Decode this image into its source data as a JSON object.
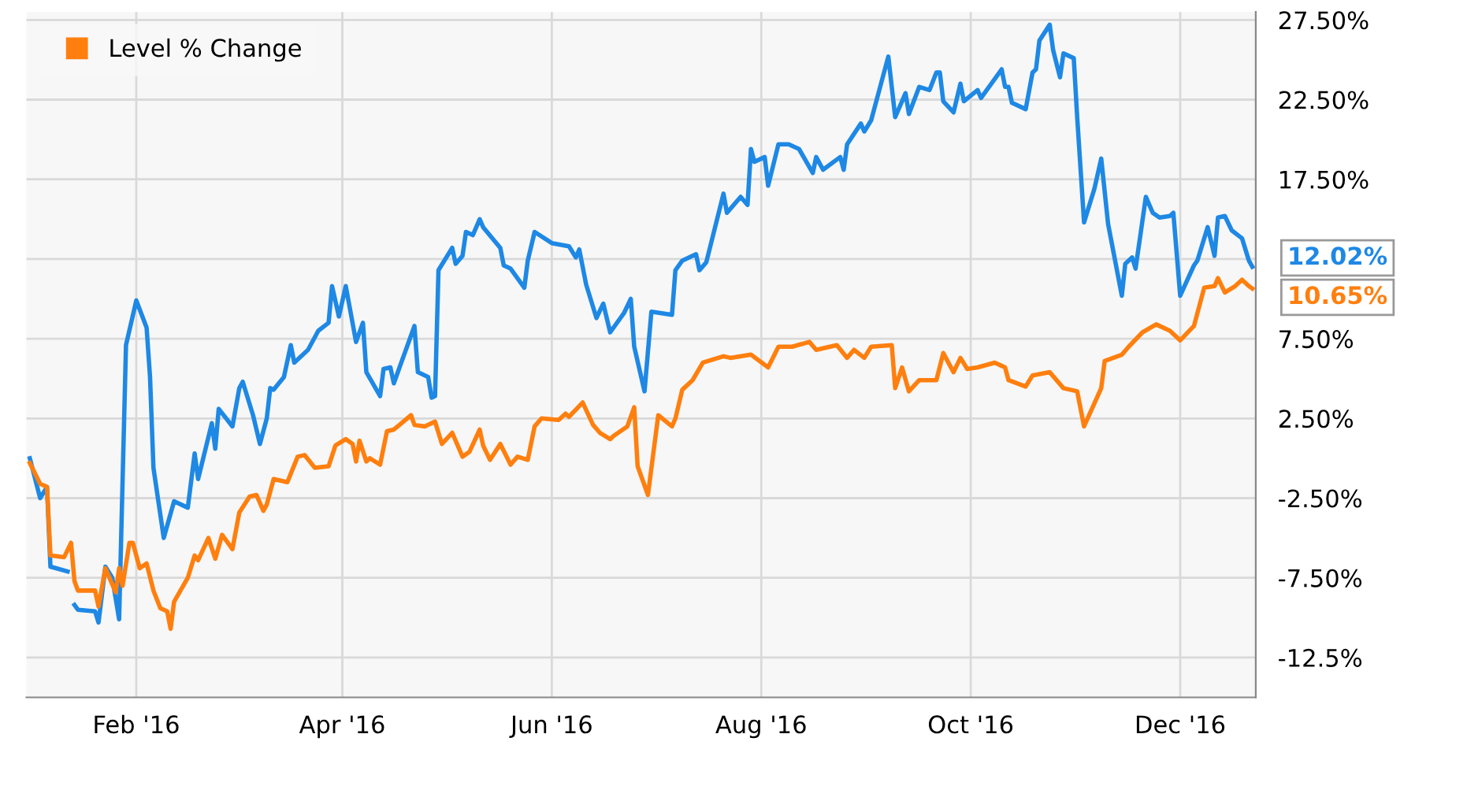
{
  "chart_data": {
    "type": "line",
    "legend": "top left",
    "grid": true,
    "marker": "none",
    "line_style": "solid",
    "xlim": [
      "2015-12-31",
      "2016-12-23"
    ],
    "xticks": [
      {
        "value": "2016-02-01",
        "label": "Feb '16"
      },
      {
        "value": "2016-04-01",
        "label": "Apr '16"
      },
      {
        "value": "2016-06-01",
        "label": "Jun '16"
      },
      {
        "value": "2016-08-01",
        "label": "Aug '16"
      },
      {
        "value": "2016-10-01",
        "label": "Oct '16"
      },
      {
        "value": "2016-12-01",
        "label": "Dec '16"
      }
    ],
    "ylim": [
      -15,
      28
    ],
    "yticks": [
      {
        "value": 27.5,
        "label": "27.50%"
      },
      {
        "value": 22.5,
        "label": "22.50%"
      },
      {
        "value": 17.5,
        "label": "17.50%"
      },
      {
        "value": 12.5,
        "label": null
      },
      {
        "value": 7.5,
        "label": "7.50%"
      },
      {
        "value": 2.5,
        "label": "2.50%"
      },
      {
        "value": -2.5,
        "label": "-2.50%"
      },
      {
        "value": -7.5,
        "label": "-7.50%"
      },
      {
        "value": -12.5,
        "label": "-12.5%"
      }
    ],
    "annotations": [
      {
        "text": "12.02%",
        "x": "2016-12-22",
        "y": 12.02
      },
      {
        "text": "10.65%",
        "x": "2016-12-22",
        "y": 10.65
      }
    ],
    "series": [
      {
        "color": "#1e88e5",
        "x": [
          "2016-01-01",
          "2016-01-04",
          "2016-01-06",
          "2016-01-07",
          "2016-01-12",
          "2016-01-13",
          "2016-01-14",
          "2016-01-15",
          "2016-01-20",
          "2016-01-21",
          "2016-01-23",
          "2016-01-25",
          "2016-01-27",
          "2016-01-29",
          "2016-02-01",
          "2016-02-04",
          "2016-02-05",
          "2016-02-06",
          "2016-02-09",
          "2016-02-12",
          "2016-02-16",
          "2016-02-18",
          "2016-02-19",
          "2016-02-23",
          "2016-02-24",
          "2016-02-25",
          "2016-02-29",
          "2016-03-02",
          "2016-03-03",
          "2016-03-06",
          "2016-03-08",
          "2016-03-10",
          "2016-03-11",
          "2016-03-12",
          "2016-03-15",
          "2016-03-17",
          "2016-03-18",
          "2016-03-22",
          "2016-03-25",
          "2016-03-28",
          "2016-03-29",
          "2016-03-31",
          "2016-04-02",
          "2016-04-05",
          "2016-04-07",
          "2016-04-08",
          "2016-04-12",
          "2016-04-13",
          "2016-04-15",
          "2016-04-16",
          "2016-04-20",
          "2016-04-22",
          "2016-04-23",
          "2016-04-26",
          "2016-04-27",
          "2016-04-28",
          "2016-04-29",
          "2016-05-03",
          "2016-05-04",
          "2016-05-06",
          "2016-05-07",
          "2016-05-09",
          "2016-05-11",
          "2016-05-12",
          "2016-05-17",
          "2016-05-18",
          "2016-05-20",
          "2016-05-24",
          "2016-05-25",
          "2016-05-27",
          "2016-06-01",
          "2016-06-06",
          "2016-06-08",
          "2016-06-09",
          "2016-06-11",
          "2016-06-14",
          "2016-06-16",
          "2016-06-18",
          "2016-06-22",
          "2016-06-24",
          "2016-06-25",
          "2016-06-28",
          "2016-06-30",
          "2016-07-06",
          "2016-07-07",
          "2016-07-09",
          "2016-07-13",
          "2016-07-14",
          "2016-07-16",
          "2016-07-21",
          "2016-07-22",
          "2016-07-26",
          "2016-07-28",
          "2016-07-29",
          "2016-07-30",
          "2016-08-02",
          "2016-08-03",
          "2016-08-06",
          "2016-08-09",
          "2016-08-12",
          "2016-08-16",
          "2016-08-17",
          "2016-08-19",
          "2016-08-24",
          "2016-08-25",
          "2016-08-26",
          "2016-08-30",
          "2016-08-31",
          "2016-09-02",
          "2016-09-07",
          "2016-09-09",
          "2016-09-12",
          "2016-09-13",
          "2016-09-16",
          "2016-09-19",
          "2016-09-21",
          "2016-09-22",
          "2016-09-23",
          "2016-09-26",
          "2016-09-28",
          "2016-09-29",
          "2016-10-03",
          "2016-10-04",
          "2016-10-10",
          "2016-10-11",
          "2016-10-12",
          "2016-10-13",
          "2016-10-17",
          "2016-10-19",
          "2016-10-20",
          "2016-10-21",
          "2016-10-24",
          "2016-10-25",
          "2016-10-27",
          "2016-10-28",
          "2016-10-31",
          "2016-11-01",
          "2016-11-03",
          "2016-11-06",
          "2016-11-08",
          "2016-11-10",
          "2016-11-14",
          "2016-11-15",
          "2016-11-17",
          "2016-11-18",
          "2016-11-21",
          "2016-11-23",
          "2016-11-25",
          "2016-11-28",
          "2016-11-29",
          "2016-12-01",
          "2016-12-05",
          "2016-12-06",
          "2016-12-09",
          "2016-12-11",
          "2016-12-12",
          "2016-12-14",
          "2016-12-16",
          "2016-12-19",
          "2016-12-21",
          "2016-12-22"
        ],
        "values": [
          0,
          -2.5,
          -1.8,
          -6.8,
          -7.1,
          null,
          -9.2,
          -9.5,
          -9.6,
          -10.3,
          -6.8,
          -7.5,
          -10.1,
          7.1,
          9.9,
          8.2,
          5.1,
          -0.6,
          -5.0,
          -2.7,
          -3.1,
          0.3,
          -1.3,
          2.2,
          0.6,
          3.1,
          2.0,
          4.4,
          4.8,
          2.7,
          0.9,
          2.5,
          4.4,
          4.3,
          5.1,
          7.1,
          6.0,
          6.8,
          8.0,
          8.5,
          10.8,
          8.9,
          10.8,
          7.3,
          8.5,
          5.4,
          3.9,
          5.6,
          5.7,
          4.7,
          7.1,
          8.3,
          5.4,
          5.1,
          3.8,
          3.9,
          11.8,
          13.2,
          12.2,
          12.7,
          14.2,
          14.0,
          15.0,
          14.5,
          13.2,
          12.1,
          11.9,
          10.7,
          12.4,
          14.2,
          13.5,
          13.3,
          12.6,
          13.1,
          10.9,
          8.8,
          9.7,
          7.9,
          9.1,
          10.0,
          7.0,
          4.2,
          9.2,
          9.0,
          11.8,
          12.4,
          12.8,
          11.8,
          12.3,
          16.6,
          15.4,
          16.4,
          15.9,
          19.4,
          18.6,
          18.9,
          17.1,
          19.7,
          19.7,
          19.4,
          17.9,
          18.9,
          18.1,
          18.9,
          18.1,
          19.7,
          21.0,
          20.5,
          21.2,
          25.2,
          21.4,
          22.9,
          21.6,
          23.3,
          23.1,
          24.2,
          24.2,
          22.4,
          21.7,
          23.5,
          22.4,
          23.1,
          22.6,
          24.4,
          23.3,
          23.3,
          22.3,
          21.9,
          24.2,
          24.4,
          26.2,
          27.2,
          25.6,
          23.9,
          25.4,
          25.1,
          21.4,
          14.8,
          16.9,
          18.8,
          14.7,
          10.2,
          12.2,
          12.6,
          11.9,
          16.4,
          15.4,
          15.1,
          15.2,
          15.4,
          10.2,
          12.1,
          12.4,
          14.5,
          12.7,
          15.1,
          15.2,
          14.3,
          13.8,
          12.4,
          12.02
        ]
      },
      {
        "name": "Level % Change",
        "color": "#ff7f0e",
        "x": [
          "2016-01-01",
          "2016-01-04",
          "2016-01-06",
          "2016-01-07",
          "2016-01-11",
          "2016-01-13",
          "2016-01-14",
          "2016-01-15",
          "2016-01-20",
          "2016-01-21",
          "2016-01-23",
          "2016-01-26",
          "2016-01-27",
          "2016-01-28",
          "2016-01-30",
          "2016-01-31",
          "2016-02-02",
          "2016-02-04",
          "2016-02-06",
          "2016-02-08",
          "2016-02-10",
          "2016-02-11",
          "2016-02-12",
          "2016-02-16",
          "2016-02-18",
          "2016-02-19",
          "2016-02-22",
          "2016-02-24",
          "2016-02-26",
          "2016-02-29",
          "2016-03-02",
          "2016-03-05",
          "2016-03-07",
          "2016-03-09",
          "2016-03-10",
          "2016-03-12",
          "2016-03-16",
          "2016-03-19",
          "2016-03-21",
          "2016-03-24",
          "2016-03-28",
          "2016-03-30",
          "2016-04-02",
          "2016-04-04",
          "2016-04-05",
          "2016-04-06",
          "2016-04-08",
          "2016-04-09",
          "2016-04-12",
          "2016-04-14",
          "2016-04-16",
          "2016-04-21",
          "2016-04-22",
          "2016-04-25",
          "2016-04-28",
          "2016-04-30",
          "2016-05-03",
          "2016-05-06",
          "2016-05-08",
          "2016-05-11",
          "2016-05-12",
          "2016-05-14",
          "2016-05-17",
          "2016-05-20",
          "2016-05-22",
          "2016-05-25",
          "2016-05-27",
          "2016-05-29",
          "2016-06-03",
          "2016-06-05",
          "2016-06-06",
          "2016-06-10",
          "2016-06-13",
          "2016-06-15",
          "2016-06-18",
          "2016-06-19",
          "2016-06-23",
          "2016-06-25",
          "2016-06-26",
          "2016-06-29",
          "2016-07-02",
          "2016-07-06",
          "2016-07-07",
          "2016-07-09",
          "2016-07-12",
          "2016-07-15",
          "2016-07-21",
          "2016-07-23",
          "2016-07-29",
          "2016-08-03",
          "2016-08-06",
          "2016-08-10",
          "2016-08-15",
          "2016-08-17",
          "2016-08-23",
          "2016-08-26",
          "2016-08-28",
          "2016-08-31",
          "2016-09-02",
          "2016-09-08",
          "2016-09-09",
          "2016-09-11",
          "2016-09-13",
          "2016-09-16",
          "2016-09-21",
          "2016-09-23",
          "2016-09-26",
          "2016-09-28",
          "2016-09-30",
          "2016-10-03",
          "2016-10-08",
          "2016-10-11",
          "2016-10-12",
          "2016-10-17",
          "2016-10-19",
          "2016-10-24",
          "2016-10-28",
          "2016-11-01",
          "2016-11-03",
          "2016-11-08",
          "2016-11-09",
          "2016-11-14",
          "2016-11-16",
          "2016-11-20",
          "2016-11-24",
          "2016-11-28",
          "2016-12-01",
          "2016-12-05",
          "2016-12-08",
          "2016-12-11",
          "2016-12-12",
          "2016-12-14",
          "2016-12-17",
          "2016-12-19",
          "2016-12-21",
          "2016-12-22"
        ],
        "values": [
          -0.3,
          -1.6,
          -1.8,
          -6.1,
          -6.2,
          -5.3,
          -7.7,
          -8.3,
          -8.3,
          -9.3,
          -6.9,
          -8.4,
          -6.9,
          -8.0,
          -5.3,
          -5.3,
          -6.9,
          -6.6,
          -8.3,
          -9.4,
          -9.6,
          -10.7,
          -9.0,
          -7.5,
          -6.1,
          -6.4,
          -5.0,
          -6.3,
          -4.8,
          -5.7,
          -3.4,
          -2.4,
          -2.3,
          -3.3,
          -2.9,
          -1.3,
          -1.5,
          0.1,
          0.2,
          -0.6,
          -0.5,
          0.8,
          1.2,
          0.9,
          -0.2,
          1.1,
          -0.2,
          0.0,
          -0.4,
          1.7,
          1.8,
          2.7,
          2.1,
          2.0,
          2.3,
          0.9,
          1.6,
          0.1,
          0.4,
          1.8,
          0.8,
          -0.1,
          0.9,
          -0.4,
          0.1,
          -0.1,
          2.0,
          2.5,
          2.4,
          2.8,
          2.6,
          3.5,
          2.1,
          1.6,
          1.2,
          1.4,
          2.0,
          3.2,
          -0.5,
          -2.3,
          2.7,
          2.0,
          2.5,
          4.3,
          4.9,
          6.0,
          6.4,
          6.3,
          6.5,
          5.7,
          7.0,
          7.0,
          7.3,
          6.8,
          7.1,
          6.3,
          6.8,
          6.3,
          7.0,
          7.1,
          4.4,
          5.7,
          4.2,
          4.9,
          4.9,
          6.6,
          5.4,
          6.3,
          5.6,
          5.7,
          6.0,
          5.7,
          4.9,
          4.5,
          5.2,
          5.4,
          4.4,
          4.2,
          2.0,
          4.4,
          6.1,
          6.5,
          7.0,
          7.9,
          8.4,
          8.0,
          7.4,
          8.3,
          10.7,
          10.8,
          11.3,
          10.4,
          10.8,
          11.2,
          10.8,
          10.65
        ]
      }
    ]
  }
}
